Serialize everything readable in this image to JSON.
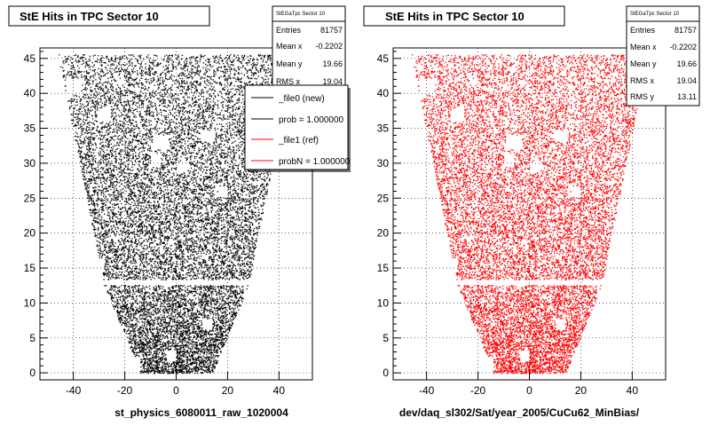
{
  "chart_data": [
    {
      "type": "scatter",
      "title": "StE Hits in TPC Sector 10",
      "xlabel": "st_physics_6080011_raw_1020004",
      "ylabel": "",
      "xlim": [
        -53,
        53
      ],
      "ylim": [
        -1,
        46.5
      ],
      "xticks": [
        "-40",
        "-20",
        "0",
        "20",
        "40"
      ],
      "yticks": [
        "0",
        "5",
        "10",
        "15",
        "20",
        "25",
        "30",
        "35",
        "40",
        "45"
      ],
      "grid": true,
      "marker_color": "#000000",
      "stats": {
        "name": "StEGaTpc Sector 10",
        "rows": [
          {
            "label": "Entries",
            "value": "81757"
          },
          {
            "label": "Mean x",
            "value": "-0.2202"
          },
          {
            "label": "Mean y",
            "value": "19.66"
          },
          {
            "label": "RMS x",
            "value": "19.04"
          }
        ]
      },
      "legend": {
        "position": "top-right",
        "entries": [
          {
            "label": "_file0 (new)",
            "color": "#000000"
          },
          {
            "label": "prob = 1.000000",
            "color": "#000000"
          },
          {
            "label": "_file1 (ref)",
            "color": "#ff0000"
          },
          {
            "label": "probN = 1.000000",
            "color": "#ff0000"
          }
        ]
      }
    },
    {
      "type": "scatter",
      "title": "StE Hits in TPC Sector 10",
      "xlabel": "dev/daq_sl302/Sat/year_2005/CuCu62_MinBias/",
      "ylabel": "",
      "xlim": [
        -53,
        53
      ],
      "ylim": [
        -1,
        46.5
      ],
      "xticks": [
        "-40",
        "-20",
        "0",
        "20",
        "40"
      ],
      "yticks": [
        "0",
        "5",
        "10",
        "15",
        "20",
        "25",
        "30",
        "35",
        "40",
        "45"
      ],
      "grid": true,
      "marker_color": "#ff0000",
      "stats": {
        "name": "StEGaTpc Sector 10",
        "rows": [
          {
            "label": "Entries",
            "value": "81757"
          },
          {
            "label": "Mean x",
            "value": "-0.2202"
          },
          {
            "label": "Mean y",
            "value": "19.66"
          },
          {
            "label": "RMS x",
            "value": "19.04"
          },
          {
            "label": "RMS y",
            "value": "13.11"
          }
        ]
      }
    }
  ]
}
